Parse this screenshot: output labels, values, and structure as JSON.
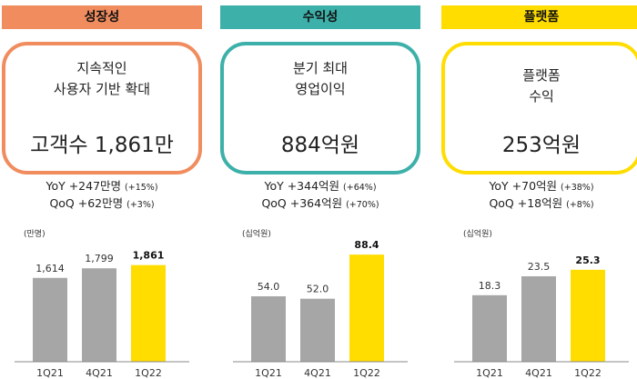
{
  "colors": {
    "growth": "#F08C5E",
    "profit": "#3DB0AA",
    "platform": "#FFDD00",
    "bar_gray": "#A6A6A6",
    "bar_highlight": "#FFDD00"
  },
  "panels": [
    {
      "header": "성장성",
      "desc": [
        "지속적인",
        "사용자 기반 확대"
      ],
      "big": "고객수 1,861만",
      "yoy": "YoY +247만명",
      "yoy_pct": "(+15%)",
      "qoq": "QoQ +62만명",
      "qoq_pct": "(+3%)"
    },
    {
      "header": "수익성",
      "desc": [
        "분기 최대",
        "영업이익"
      ],
      "big": "884억원",
      "yoy": "YoY +344억원",
      "yoy_pct": "(+64%)",
      "qoq": "QoQ +364억원",
      "qoq_pct": "(+70%)"
    },
    {
      "header": "플랫폼",
      "desc": [
        "플랫폼",
        "수익"
      ],
      "big": "253억원",
      "yoy": "YoY +70억원",
      "yoy_pct": "(+38%)",
      "qoq": "QoQ +18억원",
      "qoq_pct": "(+8%)"
    }
  ],
  "chart_data": [
    {
      "type": "bar",
      "unit_label": "(만명)",
      "categories": [
        "1Q21",
        "4Q21",
        "1Q22"
      ],
      "values": [
        1614,
        1799,
        1861
      ],
      "value_labels": [
        "1,614",
        "1,799",
        "1,861"
      ],
      "highlight_index": 2,
      "ylim": [
        0,
        2100
      ]
    },
    {
      "type": "bar",
      "unit_label": "(십억원)",
      "categories": [
        "1Q21",
        "4Q21",
        "1Q22"
      ],
      "values": [
        54.0,
        52.0,
        88.4
      ],
      "value_labels": [
        "54.0",
        "52.0",
        "88.4"
      ],
      "highlight_index": 2,
      "ylim": [
        0,
        90
      ]
    },
    {
      "type": "bar",
      "unit_label": "(십억원)",
      "categories": [
        "1Q21",
        "4Q21",
        "1Q22"
      ],
      "values": [
        18.3,
        23.5,
        25.3
      ],
      "value_labels": [
        "18.3",
        "23.5",
        "25.3"
      ],
      "highlight_index": 2,
      "ylim": [
        0,
        30
      ]
    }
  ]
}
